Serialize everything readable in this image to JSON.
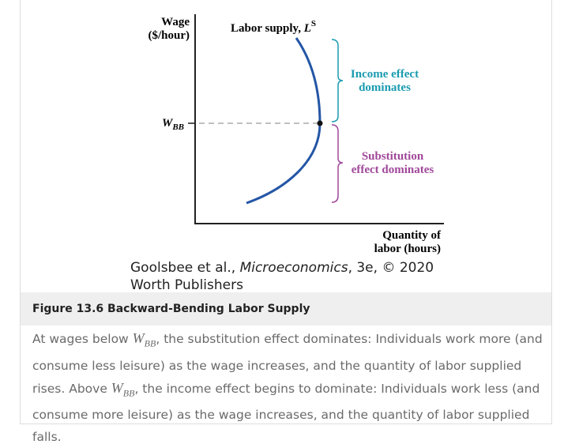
{
  "figure": {
    "y_axis_label": [
      "Wage",
      "($/hour)"
    ],
    "x_axis_label": [
      "Quantity of",
      "labor (hours)"
    ],
    "curve_label": {
      "text": "Labor supply, ",
      "symbol": "L",
      "superscript": "S"
    },
    "tick_label": {
      "symbol": "W",
      "subscript": "BB"
    },
    "upper_bracket_label": [
      "Income effect",
      "dominates"
    ],
    "lower_bracket_label": [
      "Substitution",
      "effect dominates"
    ]
  },
  "credit": {
    "authors": "Goolsbee et al., ",
    "book": "Microeconomics",
    "rest": ", 3e, © 2020 Worth Publishers"
  },
  "caption": {
    "title": "Figure 13.6 Backward-Bending Labor Supply",
    "part1": "At wages below ",
    "part2": ", the substitution effect dominates: Individuals work more (and consume less leisure) as the wage increases, and the quantity of labor supplied rises. Above ",
    "part3": ", the income effect begins to dominate: Individuals work less (and consume more leisure) as the wage increases, and the quantity of labor supplied falls."
  }
}
